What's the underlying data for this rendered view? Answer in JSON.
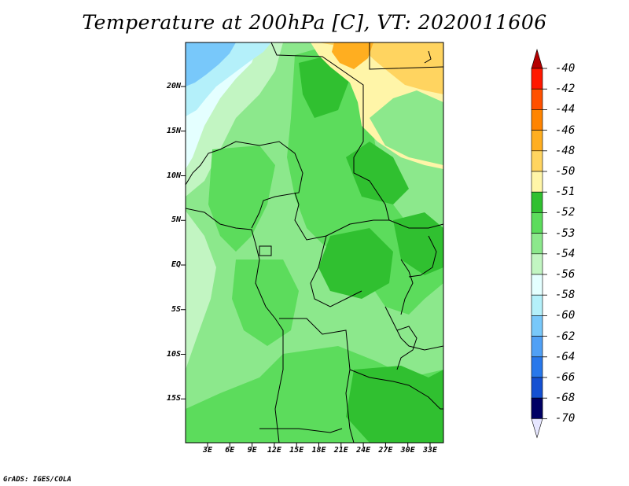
{
  "title": "Temperature at 200hPa [C], VT: 2020011606",
  "credit": "GrADS: IGES/COLA",
  "map": {
    "lat_range": [
      -20,
      25
    ],
    "lon_range": [
      0,
      35
    ],
    "y_ticks": [
      "20N",
      "15N",
      "10N",
      "5N",
      "EQ",
      "5S",
      "10S",
      "15S"
    ],
    "x_ticks": [
      "3E",
      "6E",
      "9E",
      "12E",
      "15E",
      "18E",
      "21E",
      "24E",
      "27E",
      "30E",
      "33E"
    ],
    "field": "temperature 200hPa"
  },
  "colorbar": {
    "labels": [
      "-40",
      "-42",
      "-44",
      "-46",
      "-48",
      "-50",
      "-51",
      "-52",
      "-53",
      "-54",
      "-56",
      "-58",
      "-60",
      "-62",
      "-64",
      "-66",
      "-68",
      "-70"
    ],
    "colors": [
      "#ff1800",
      "#ff5000",
      "#ff8400",
      "#ffae20",
      "#ffd460",
      "#fff5a8",
      "#30c030",
      "#5cdc5c",
      "#8ce88c",
      "#c2f5c2",
      "#e4ffff",
      "#b4f0fa",
      "#78c8fa",
      "#50a0f5",
      "#2878eb",
      "#1450d2",
      "#0528aa",
      "#000064"
    ],
    "top_tri_color": "#b40000",
    "bottom_tri_color": "#e6e6ff"
  }
}
